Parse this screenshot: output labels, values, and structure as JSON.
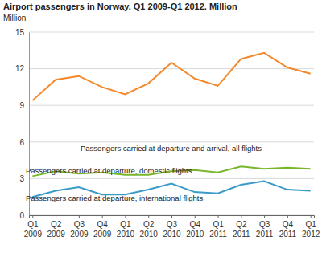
{
  "chart_data": {
    "type": "line",
    "title": "Airport passengers in Norway. Q1 2009-Q1 2012. Million",
    "ylabel": "Million",
    "categories": [
      "Q1 2009",
      "Q2 2009",
      "Q3 2009",
      "Q4 2009",
      "Q1 2010",
      "Q2 2010",
      "Q3 2010",
      "Q4 2010",
      "Q1 2011",
      "Q2 2011",
      "Q3 2011",
      "Q4 2011",
      "Q1 2012"
    ],
    "series": [
      {
        "name": "Passengers carried at departure and arrival, all flights",
        "color": "#f4892c",
        "values": [
          9.4,
          11.1,
          11.4,
          10.5,
          9.9,
          10.8,
          12.5,
          11.2,
          10.6,
          12.8,
          13.3,
          12.1,
          11.6
        ]
      },
      {
        "name": "Passengers carried at departure, domestic flights",
        "color": "#78b62b",
        "values": [
          3.2,
          3.6,
          3.4,
          3.5,
          3.3,
          3.3,
          3.6,
          3.7,
          3.5,
          4.0,
          3.8,
          3.9,
          3.8
        ]
      },
      {
        "name": "Passengers carried at departure, international flights",
        "color": "#3b9bc8",
        "values": [
          1.5,
          2.0,
          2.3,
          1.7,
          1.7,
          2.1,
          2.6,
          1.9,
          1.8,
          2.5,
          2.8,
          2.1,
          2.0
        ]
      }
    ],
    "ylim": [
      0,
      15
    ],
    "yticks": [
      0,
      3,
      6,
      9,
      12,
      15
    ],
    "grid": true
  }
}
